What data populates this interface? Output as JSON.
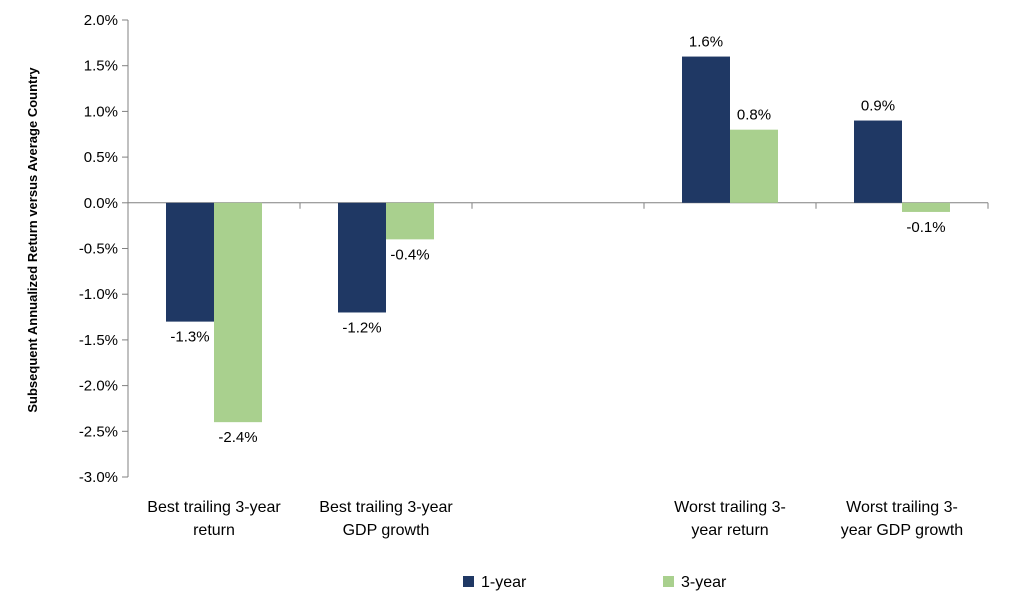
{
  "chart_data": {
    "type": "bar",
    "ylabel": "Subsequent Annualized Return versus Average Country",
    "xlabel": "",
    "ylim": [
      -3.0,
      2.0
    ],
    "y_ticks": [
      "2.0%",
      "1.5%",
      "1.0%",
      "0.5%",
      "0.0%",
      "-0.5%",
      "-1.0%",
      "-1.5%",
      "-2.0%",
      "-2.5%",
      "-3.0%"
    ],
    "y_tick_values": [
      2.0,
      1.5,
      1.0,
      0.5,
      0.0,
      -0.5,
      -1.0,
      -1.5,
      -2.0,
      -2.5,
      -3.0
    ],
    "grid": false,
    "legend_position": "bottom",
    "categories": [
      [
        "Best trailing 3-year",
        "return"
      ],
      [
        "Best trailing 3-year",
        "GDP growth"
      ],
      [
        "",
        ""
      ],
      [
        "Worst trailing 3-",
        "year return"
      ],
      [
        "Worst trailing 3-",
        "year GDP growth"
      ]
    ],
    "series": [
      {
        "name": "1-year",
        "color": "#1f3864",
        "values": [
          -1.3,
          -1.2,
          null,
          1.6,
          0.9
        ],
        "labels": [
          "-1.3%",
          "-1.2%",
          "",
          "1.6%",
          "0.9%"
        ]
      },
      {
        "name": "3-year",
        "color": "#a9d08e",
        "values": [
          -2.4,
          -0.4,
          null,
          0.8,
          -0.1
        ],
        "labels": [
          "-2.4%",
          "-0.4%",
          "",
          "0.8%",
          "-0.1%"
        ]
      }
    ]
  }
}
